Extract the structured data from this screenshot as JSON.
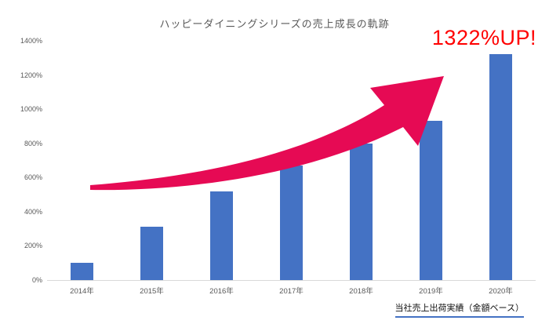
{
  "chart_data": {
    "type": "bar",
    "title": "ハッピーダイニングシリーズの売上成長の軌跡",
    "categories": [
      "2014年",
      "2015年",
      "2016年",
      "2017年",
      "2018年",
      "2019年",
      "2020年"
    ],
    "values": [
      100,
      310,
      520,
      670,
      800,
      930,
      1322
    ],
    "unit": "%",
    "xlabel": "",
    "ylabel": "",
    "ylim": [
      0,
      1400
    ],
    "ytick_step": 200,
    "ytick_labels": [
      "0%",
      "200%",
      "400%",
      "600%",
      "800%",
      "1000%",
      "1200%",
      "1400%"
    ],
    "grid": false,
    "legend": false,
    "annotation": "1322%UP!",
    "footer": "当社売上出荷実績（金額ベース）",
    "bar_color": "#4472c4",
    "arrow_color": "#e60a54",
    "annotation_color": "#ff0000",
    "title_color": "#595959"
  }
}
